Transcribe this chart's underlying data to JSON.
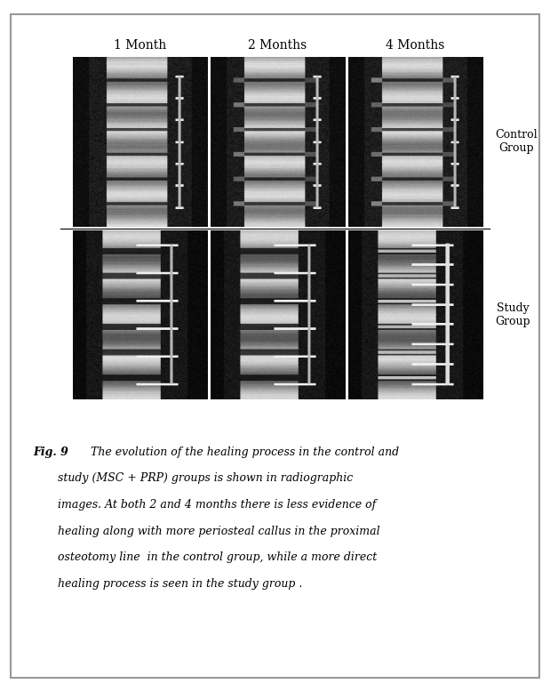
{
  "title": "Fig. 9",
  "col_labels": [
    "1 Month",
    "2 Months",
    "4 Months"
  ],
  "row_labels": [
    "Control\nGroup",
    "Study\nGroup"
  ],
  "caption": "Fig. 9   The evolution of the healing process in the control and\n       study (MSC + PRP) groups is shown in radiographic\n       images. At both 2 and 4 months there is less evidence of\n       healing along with more periosteal callus in the proximal\n       osteotomy line  in the control group, while a more direct\n       healing process is seen in the study group .",
  "bg_color": "#ffffff",
  "border_color": "#cccccc",
  "figure_width": 6.19,
  "figure_height": 7.78
}
